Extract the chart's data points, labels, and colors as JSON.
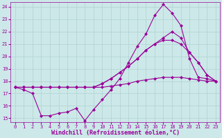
{
  "xlabel": "Windchill (Refroidissement éolien,°C)",
  "bg_color": "#cce8e8",
  "line_color": "#990099",
  "grid_color": "#aacccc",
  "xlim": [
    -0.5,
    23.5
  ],
  "ylim": [
    14.7,
    24.4
  ],
  "yticks": [
    15,
    16,
    17,
    18,
    19,
    20,
    21,
    22,
    23,
    24
  ],
  "xticks": [
    0,
    1,
    2,
    3,
    4,
    5,
    6,
    7,
    8,
    9,
    10,
    11,
    12,
    13,
    14,
    15,
    16,
    17,
    18,
    19,
    20,
    21,
    22,
    23
  ],
  "line1_x": [
    0,
    1,
    2,
    3,
    4,
    5,
    6,
    7,
    8,
    9,
    10,
    11,
    12,
    13,
    14,
    15,
    16,
    17,
    18,
    19,
    20,
    21,
    22,
    23
  ],
  "line1_y": [
    17.5,
    17.5,
    17.5,
    17.5,
    17.5,
    17.5,
    17.5,
    17.5,
    17.5,
    17.5,
    17.5,
    17.6,
    17.7,
    17.8,
    18.0,
    18.1,
    18.2,
    18.3,
    18.3,
    18.3,
    18.2,
    18.1,
    18.0,
    18.0
  ],
  "line2_x": [
    0,
    1,
    2,
    3,
    4,
    5,
    6,
    7,
    8,
    9,
    10,
    11,
    12,
    13,
    14,
    15,
    16,
    17,
    18,
    19,
    20,
    21,
    22,
    23
  ],
  "line2_y": [
    17.5,
    17.5,
    17.5,
    17.5,
    17.5,
    17.5,
    17.5,
    17.5,
    17.5,
    17.5,
    17.8,
    18.2,
    18.7,
    19.2,
    19.8,
    20.5,
    21.0,
    21.3,
    21.3,
    21.0,
    20.3,
    19.5,
    18.5,
    18.0
  ],
  "line3_x": [
    0,
    1,
    2,
    3,
    4,
    5,
    6,
    7,
    8,
    9,
    10,
    11,
    12,
    13,
    14,
    15,
    16,
    17,
    18,
    19,
    20,
    21,
    22,
    23
  ],
  "line3_y": [
    17.5,
    17.5,
    17.5,
    17.5,
    17.5,
    17.5,
    17.5,
    17.5,
    17.5,
    17.5,
    17.8,
    18.2,
    18.7,
    19.2,
    19.8,
    20.5,
    21.0,
    21.5,
    22.0,
    21.5,
    20.3,
    19.5,
    18.5,
    18.0
  ],
  "line4_x": [
    0,
    1,
    2,
    3,
    4,
    5,
    6,
    7,
    8,
    9,
    10,
    11,
    12,
    13,
    14,
    15,
    16,
    17,
    18,
    19,
    20,
    21,
    22,
    23
  ],
  "line4_y": [
    17.5,
    17.3,
    17.0,
    15.2,
    15.2,
    15.4,
    15.5,
    15.8,
    14.8,
    15.7,
    16.5,
    17.3,
    18.2,
    19.5,
    20.8,
    21.8,
    23.3,
    24.2,
    23.5,
    22.5,
    19.8,
    18.3,
    18.2,
    18.0
  ],
  "marker": "D",
  "marker_size": 2.0,
  "linewidth": 0.8,
  "tick_fontsize": 5.0,
  "xlabel_fontsize": 6.0
}
